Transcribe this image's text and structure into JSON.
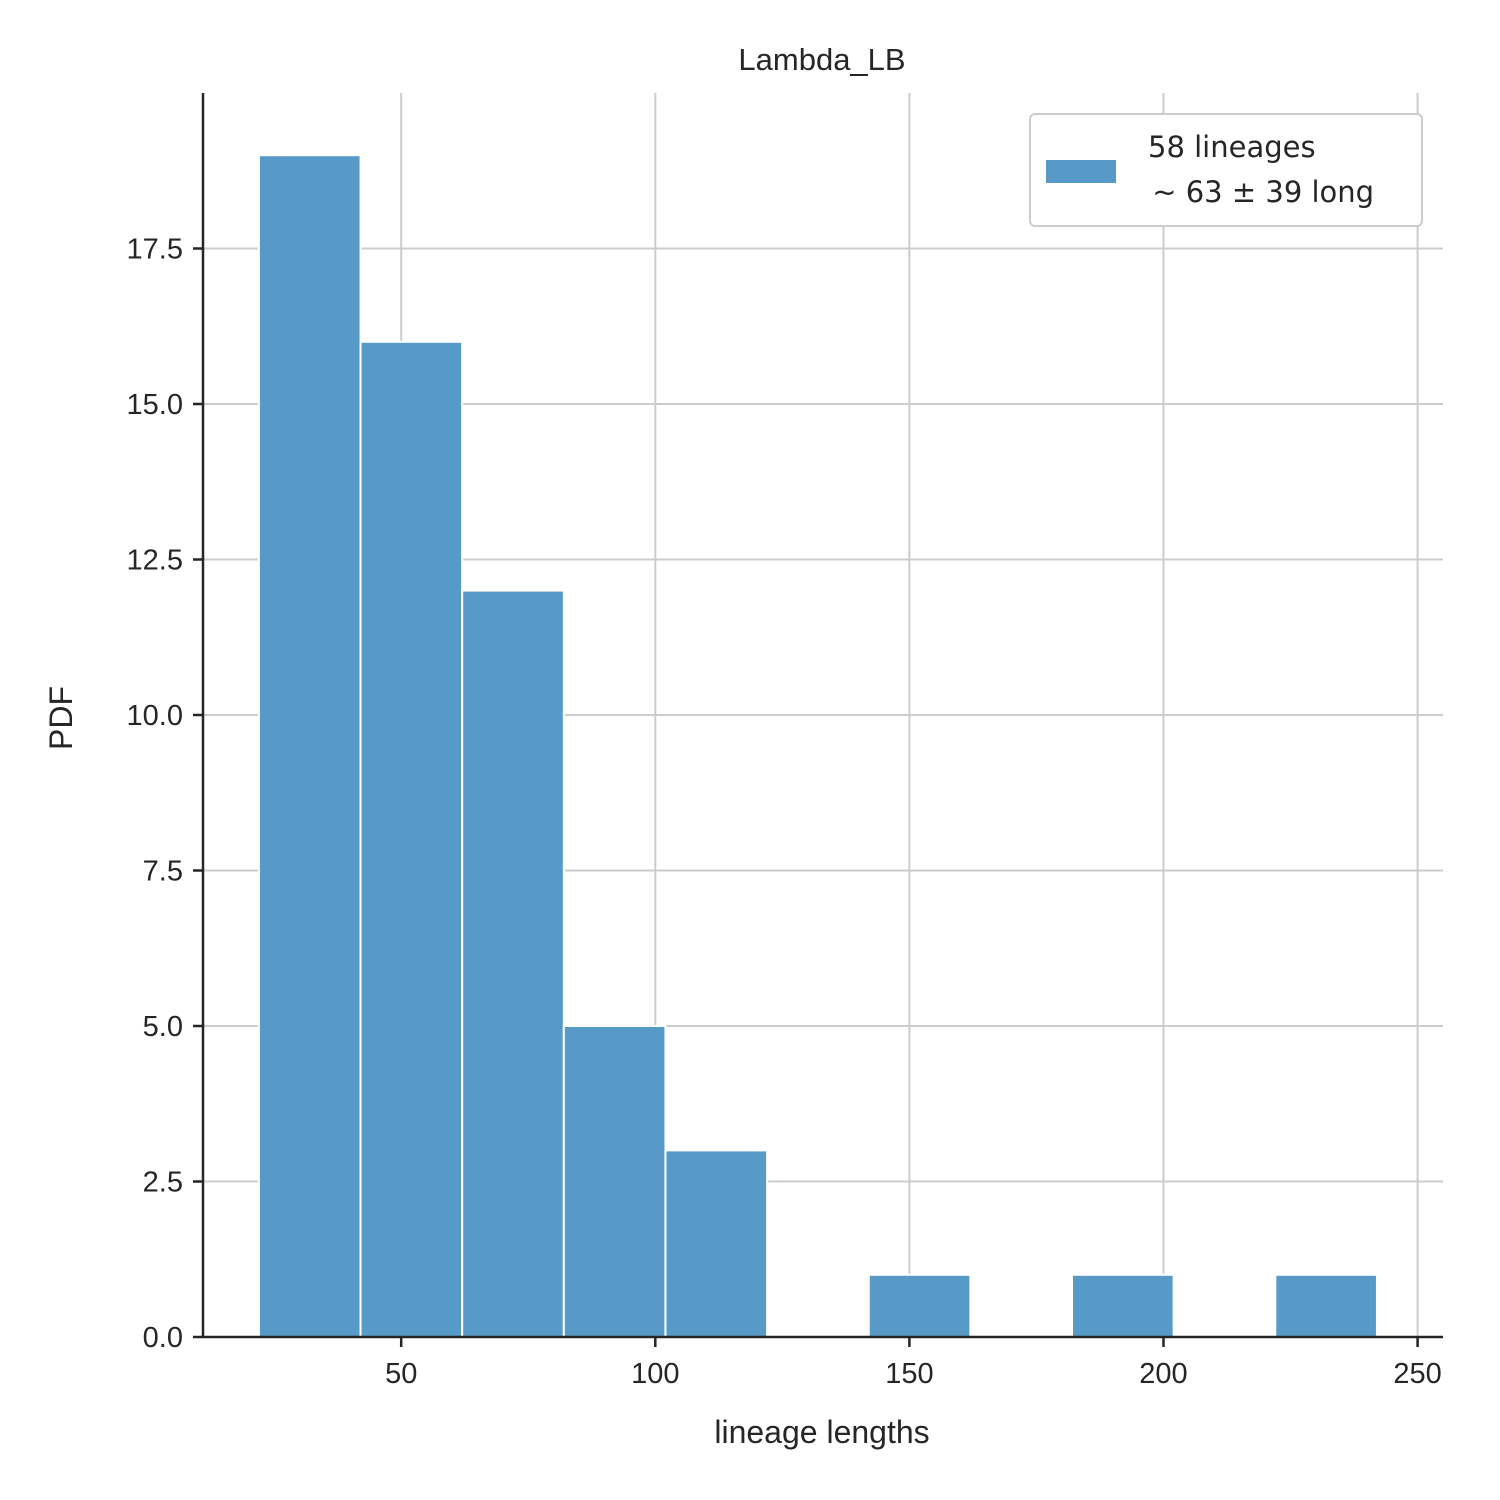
{
  "chart_data": {
    "type": "bar",
    "title": "Lambda_LB",
    "xlabel": "lineage lengths",
    "ylabel": "PDF",
    "xlim": [
      11,
      255
    ],
    "ylim": [
      0,
      20
    ],
    "grid": true,
    "bin_edges": [
      22,
      42,
      62,
      82,
      102,
      122,
      142,
      162,
      182,
      202,
      222,
      242
    ],
    "values": [
      19,
      16,
      12,
      5,
      3,
      0,
      1,
      0,
      1,
      0,
      1
    ],
    "xticks": [
      50,
      100,
      150,
      200,
      250
    ],
    "xtick_labels": [
      "50",
      "100",
      "150",
      "200",
      "250"
    ],
    "yticks": [
      0,
      2.5,
      5,
      7.5,
      10,
      12.5,
      15,
      17.5
    ],
    "ytick_labels": [
      "0.0",
      "2.5",
      "5.0",
      "7.5",
      "10.0",
      "12.5",
      "15.0",
      "17.5"
    ],
    "color": "#5799c7",
    "legend": {
      "position": "top-right",
      "line1": "58 lineages",
      "line2": " ~ 63 ± 39 long"
    }
  }
}
